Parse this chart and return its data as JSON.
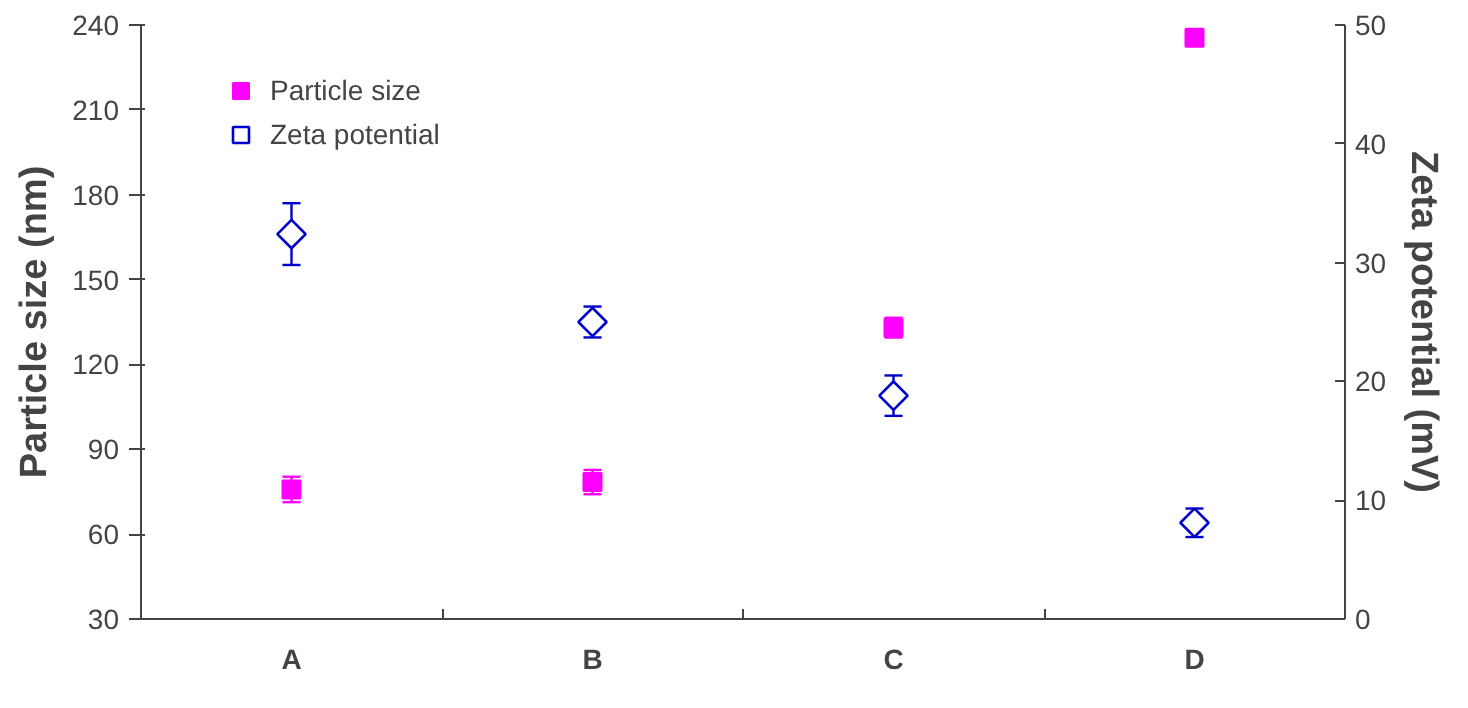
{
  "chart_data": {
    "type": "scatter",
    "ylabel": "Particle size (nm)",
    "y2label": "Zeta potential (mV)",
    "categories": [
      "A",
      "B",
      "C",
      "D"
    ],
    "ylim": [
      30,
      240
    ],
    "yticks": [
      30,
      60,
      90,
      120,
      150,
      180,
      210,
      240
    ],
    "y2lim": [
      0,
      50
    ],
    "y2ticks": [
      0,
      10,
      20,
      30,
      40,
      50
    ],
    "series": [
      {
        "name": "Particle size",
        "color": "#ff00ff",
        "marker": "square",
        "values": [
          75.8,
          78.4,
          133.0,
          235.5
        ],
        "errors": [
          4.5,
          4.3,
          3.5,
          2
        ]
      },
      {
        "name": "Zeta potential",
        "color": "#0000cc",
        "marker": "diamond",
        "axis": "y2",
        "values": [
          32.4,
          25.0,
          18.8,
          8.1
        ],
        "errors": [
          2.6,
          1.3,
          1.7,
          1.2
        ]
      }
    ],
    "legend": "top left",
    "grid": false
  }
}
